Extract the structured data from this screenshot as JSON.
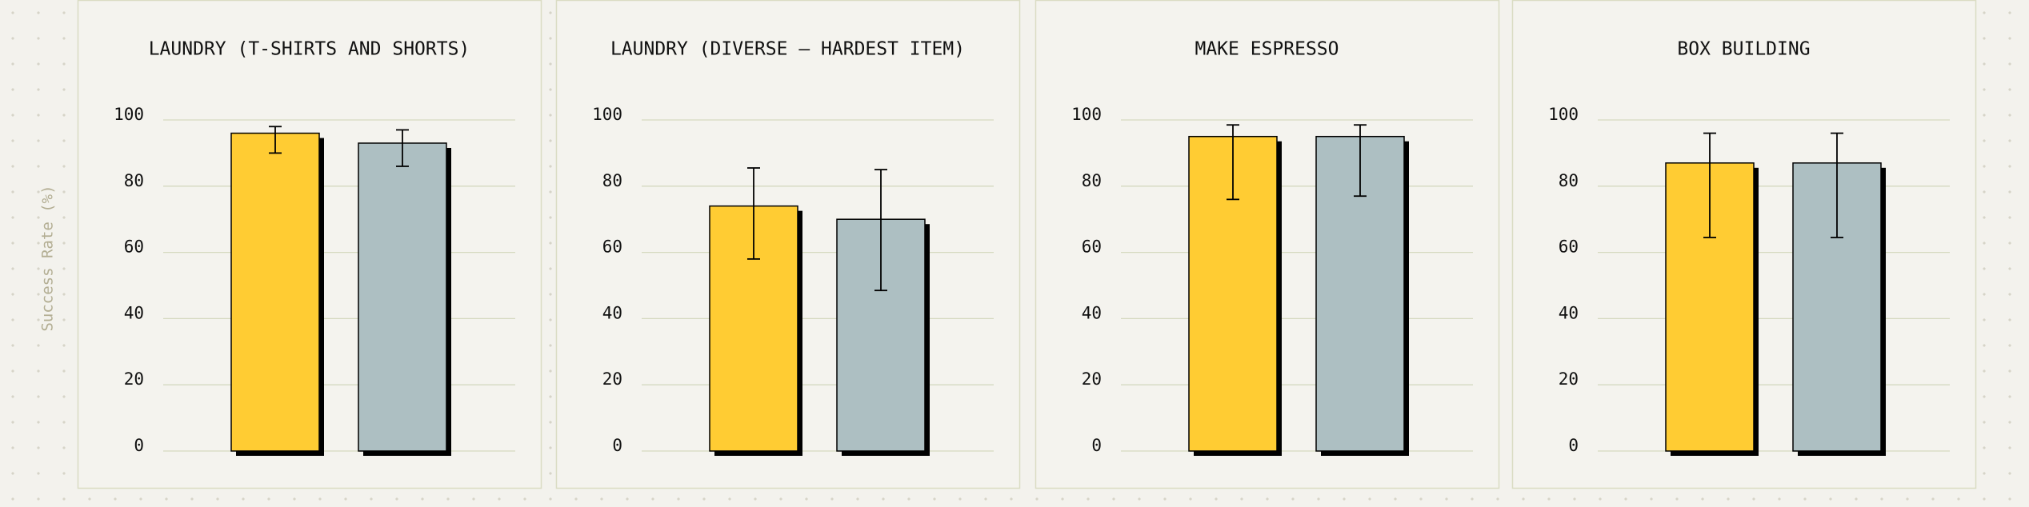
{
  "y_label": "Success Rate (%)",
  "chart_data": [
    {
      "type": "bar",
      "title": "LAUNDRY (T-SHIRTS AND SHORTS)",
      "ylim": [
        0,
        100
      ],
      "yticks": [
        0,
        20,
        40,
        60,
        80,
        100
      ],
      "grid": true,
      "series": [
        {
          "color": "#ffcc33",
          "values": [
            96
          ],
          "lower": [
            90
          ],
          "upper": [
            98
          ]
        },
        {
          "color": "#adbfc2",
          "values": [
            93
          ],
          "lower": [
            86
          ],
          "upper": [
            97
          ]
        }
      ]
    },
    {
      "type": "bar",
      "title": "LAUNDRY (DIVERSE – HARDEST ITEM)",
      "ylim": [
        0,
        100
      ],
      "yticks": [
        0,
        20,
        40,
        60,
        80,
        100
      ],
      "grid": true,
      "series": [
        {
          "color": "#ffcc33",
          "values": [
            74
          ],
          "lower": [
            58
          ],
          "upper": [
            85.5
          ]
        },
        {
          "color": "#adbfc2",
          "values": [
            70
          ],
          "lower": [
            48.5
          ],
          "upper": [
            85
          ]
        }
      ]
    },
    {
      "type": "bar",
      "title": "MAKE ESPRESSO",
      "ylim": [
        0,
        100
      ],
      "yticks": [
        0,
        20,
        40,
        60,
        80,
        100
      ],
      "grid": true,
      "series": [
        {
          "color": "#ffcc33",
          "values": [
            95
          ],
          "lower": [
            76
          ],
          "upper": [
            98.5
          ]
        },
        {
          "color": "#adbfc2",
          "values": [
            95
          ],
          "lower": [
            77
          ],
          "upper": [
            98.5
          ]
        }
      ]
    },
    {
      "type": "bar",
      "title": "BOX BUILDING",
      "ylim": [
        0,
        100
      ],
      "yticks": [
        0,
        20,
        40,
        60,
        80,
        100
      ],
      "grid": true,
      "series": [
        {
          "color": "#ffcc33",
          "values": [
            87
          ],
          "lower": [
            64.5
          ],
          "upper": [
            96
          ]
        },
        {
          "color": "#adbfc2",
          "values": [
            87
          ],
          "lower": [
            64.5
          ],
          "upper": [
            96
          ]
        }
      ]
    }
  ]
}
